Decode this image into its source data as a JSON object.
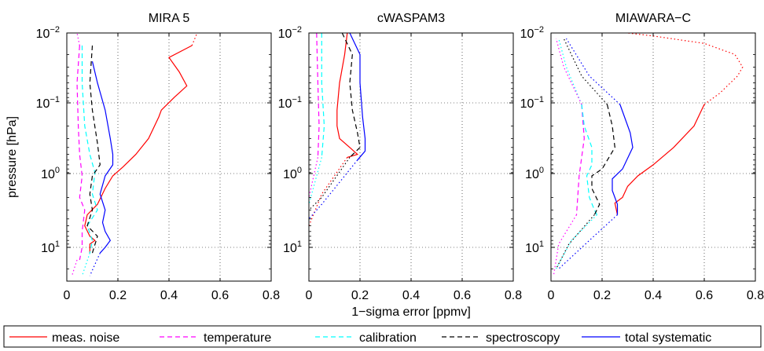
{
  "chart_data": {
    "type": "line",
    "xlabel": "1−sigma error [ppmv]",
    "ylabel": "pressure [hPa]",
    "y_scale": "log",
    "y_reversed": true,
    "x_ticks": [
      "0",
      "0.2",
      "0.4",
      "0.6",
      "0.8"
    ],
    "y_tick_mantissa": "10",
    "y_tick_exponents": [
      "−2",
      "−1",
      "0",
      "1"
    ],
    "xlim": [
      0,
      0.8
    ],
    "ylim": [
      0.01,
      30
    ],
    "grid": true,
    "legend_placement": "bottom",
    "legend": [
      {
        "label": "meas. noise",
        "color": "#ff0000",
        "dash": "solid"
      },
      {
        "label": "temperature",
        "color": "#ff00ff",
        "dash": "dashed"
      },
      {
        "label": "calibration",
        "color": "#00ffff",
        "dash": "dashed"
      },
      {
        "label": "spectroscopy",
        "color": "#000000",
        "dash": "dashed"
      },
      {
        "label": "total systematic",
        "color": "#0000ff",
        "dash": "solid"
      }
    ],
    "panels": [
      {
        "title": "MIRA 5",
        "series": [
          {
            "color": "#ff0000",
            "dash": "solid",
            "points": [
              [
                0.49,
                0.015
              ],
              [
                0.4,
                0.022
              ],
              [
                0.44,
                0.035
              ],
              [
                0.47,
                0.055
              ],
              [
                0.42,
                0.08
              ],
              [
                0.37,
                0.12
              ],
              [
                0.36,
                0.15
              ],
              [
                0.32,
                0.3
              ],
              [
                0.27,
                0.5
              ],
              [
                0.22,
                0.75
              ],
              [
                0.18,
                1.0
              ],
              [
                0.15,
                1.5
              ],
              [
                0.12,
                2.5
              ],
              [
                0.08,
                3.5
              ],
              [
                0.07,
                5.0
              ],
              [
                0.09,
                7.0
              ],
              [
                0.11,
                8.0
              ],
              [
                0.09,
                9.0
              ],
              [
                0.09,
                12.0
              ]
            ]
          },
          {
            "color": "#ff00ff",
            "dash": "dashed",
            "points": [
              [
                0.05,
                0.015
              ],
              [
                0.04,
                0.05
              ],
              [
                0.045,
                0.2
              ],
              [
                0.05,
                0.5
              ],
              [
                0.06,
                1.0
              ],
              [
                0.05,
                2.0
              ],
              [
                0.07,
                3.0
              ],
              [
                0.06,
                6.0
              ],
              [
                0.06,
                10.0
              ],
              [
                0.05,
                15.0
              ]
            ]
          },
          {
            "color": "#00ffff",
            "dash": "dashed",
            "points": [
              [
                0.06,
                0.015
              ],
              [
                0.06,
                0.05
              ],
              [
                0.07,
                0.2
              ],
              [
                0.09,
                0.5
              ],
              [
                0.11,
                0.9
              ],
              [
                0.1,
                1.8
              ],
              [
                0.12,
                3.0
              ],
              [
                0.08,
                5.0
              ],
              [
                0.1,
                8.0
              ],
              [
                0.09,
                12.0
              ]
            ]
          },
          {
            "color": "#000000",
            "dash": "dashed",
            "points": [
              [
                0.1,
                0.015
              ],
              [
                0.09,
                0.05
              ],
              [
                0.1,
                0.12
              ],
              [
                0.12,
                0.35
              ],
              [
                0.13,
                0.7
              ],
              [
                0.1,
                1.0
              ],
              [
                0.09,
                1.8
              ],
              [
                0.1,
                3.0
              ],
              [
                0.08,
                5.0
              ],
              [
                0.12,
                7.0
              ],
              [
                0.1,
                12.0
              ]
            ]
          },
          {
            "color": "#0000ff",
            "dash": "solid",
            "points": [
              [
                0.1,
                0.025
              ],
              [
                0.12,
                0.05
              ],
              [
                0.15,
                0.12
              ],
              [
                0.17,
                0.3
              ],
              [
                0.18,
                0.5
              ],
              [
                0.18,
                0.7
              ],
              [
                0.15,
                1.0
              ],
              [
                0.13,
                1.8
              ],
              [
                0.15,
                3.0
              ],
              [
                0.14,
                4.5
              ],
              [
                0.15,
                6.0
              ],
              [
                0.17,
                8.0
              ],
              [
                0.15,
                10.0
              ],
              [
                0.13,
                12.0
              ]
            ]
          },
          {
            "color": "#ff00ff",
            "dash": "dotted",
            "points": [
              [
                0.04,
                15.0
              ],
              [
                0.02,
                25.0
              ]
            ]
          },
          {
            "color": "#00ffff",
            "dash": "dotted",
            "points": [
              [
                0.09,
                12.0
              ],
              [
                0.06,
                25.0
              ]
            ]
          },
          {
            "color": "#0000ff",
            "dash": "dotted",
            "points": [
              [
                0.13,
                12.0
              ],
              [
                0.09,
                25.0
              ]
            ]
          },
          {
            "color": "#ff00ff",
            "dash": "dotted",
            "points": [
              [
                0.05,
                0.015
              ],
              [
                0.04,
                0.01
              ]
            ]
          },
          {
            "color": "#ff0000",
            "dash": "dotted",
            "points": [
              [
                0.49,
                0.015
              ],
              [
                0.51,
                0.01
              ]
            ]
          }
        ]
      },
      {
        "title": "cWASPAM3",
        "series": [
          {
            "color": "#ff0000",
            "dash": "solid",
            "points": [
              [
                0.15,
                0.01
              ],
              [
                0.14,
                0.02
              ],
              [
                0.12,
                0.05
              ],
              [
                0.11,
                0.12
              ],
              [
                0.11,
                0.2
              ],
              [
                0.12,
                0.3
              ],
              [
                0.16,
                0.4
              ],
              [
                0.19,
                0.5
              ],
              [
                0.15,
                0.55
              ]
            ]
          },
          {
            "color": "#ff00ff",
            "dash": "dashed",
            "points": [
              [
                0.03,
                0.01
              ],
              [
                0.035,
                0.05
              ],
              [
                0.04,
                0.2
              ],
              [
                0.035,
                0.55
              ]
            ]
          },
          {
            "color": "#00ffff",
            "dash": "dashed",
            "points": [
              [
                0.05,
                0.01
              ],
              [
                0.05,
                0.05
              ],
              [
                0.06,
                0.2
              ],
              [
                0.05,
                0.55
              ]
            ]
          },
          {
            "color": "#000000",
            "dash": "dashed",
            "points": [
              [
                0.13,
                0.01
              ],
              [
                0.17,
                0.02
              ],
              [
                0.16,
                0.05
              ],
              [
                0.17,
                0.12
              ],
              [
                0.19,
                0.25
              ],
              [
                0.2,
                0.4
              ],
              [
                0.16,
                0.55
              ]
            ]
          },
          {
            "color": "#0000ff",
            "dash": "solid",
            "points": [
              [
                0.16,
                0.01
              ],
              [
                0.2,
                0.02
              ],
              [
                0.2,
                0.05
              ],
              [
                0.21,
                0.15
              ],
              [
                0.22,
                0.3
              ],
              [
                0.22,
                0.45
              ],
              [
                0.19,
                0.6
              ]
            ]
          },
          {
            "color": "#ff0000",
            "dash": "dotted",
            "points": [
              [
                0.15,
                0.55
              ],
              [
                0.05,
                1.8
              ],
              [
                0.0,
                5.0
              ]
            ]
          },
          {
            "color": "#0000ff",
            "dash": "dotted",
            "points": [
              [
                0.19,
                0.6
              ],
              [
                0.05,
                2.5
              ],
              [
                0.0,
                4.0
              ]
            ]
          },
          {
            "color": "#00ffff",
            "dash": "dotted",
            "points": [
              [
                0.05,
                0.55
              ],
              [
                0.0,
                2.5
              ]
            ]
          },
          {
            "color": "#ff00ff",
            "dash": "dotted",
            "points": [
              [
                0.035,
                0.55
              ],
              [
                0.0,
                2.0
              ]
            ]
          },
          {
            "color": "#000000",
            "dash": "dotted",
            "points": [
              [
                0.16,
                0.55
              ],
              [
                0.05,
                2.0
              ],
              [
                0.0,
                3.0
              ]
            ]
          }
        ]
      },
      {
        "title": "MIAWARA−C",
        "series": [
          {
            "color": "#ff0000",
            "dash": "solid",
            "points": [
              [
                0.6,
                0.1
              ],
              [
                0.56,
                0.2
              ],
              [
                0.48,
                0.4
              ],
              [
                0.4,
                0.7
              ],
              [
                0.34,
                1.0
              ],
              [
                0.3,
                1.4
              ],
              [
                0.28,
                2.0
              ],
              [
                0.25,
                2.4
              ],
              [
                0.26,
                3.5
              ]
            ]
          },
          {
            "color": "#ff00ff",
            "dash": "dashed",
            "points": [
              [
                0.12,
                0.1
              ],
              [
                0.13,
                0.3
              ],
              [
                0.11,
                1.0
              ],
              [
                0.1,
                3.5
              ]
            ]
          },
          {
            "color": "#00ffff",
            "dash": "dashed",
            "points": [
              [
                0.12,
                0.1
              ],
              [
                0.13,
                0.2
              ],
              [
                0.16,
                0.4
              ],
              [
                0.16,
                0.7
              ],
              [
                0.14,
                1.0
              ],
              [
                0.15,
                2.0
              ],
              [
                0.17,
                3.0
              ],
              [
                0.18,
                3.5
              ]
            ]
          },
          {
            "color": "#000000",
            "dash": "dashed",
            "points": [
              [
                0.22,
                0.1
              ],
              [
                0.24,
                0.2
              ],
              [
                0.25,
                0.4
              ],
              [
                0.2,
                0.8
              ],
              [
                0.16,
                1.0
              ],
              [
                0.16,
                1.5
              ],
              [
                0.19,
                2.5
              ],
              [
                0.17,
                3.5
              ]
            ]
          },
          {
            "color": "#0000ff",
            "dash": "solid",
            "points": [
              [
                0.27,
                0.1
              ],
              [
                0.31,
                0.25
              ],
              [
                0.32,
                0.4
              ],
              [
                0.28,
                0.8
              ],
              [
                0.24,
                1.1
              ],
              [
                0.24,
                1.6
              ],
              [
                0.26,
                2.5
              ],
              [
                0.26,
                3.5
              ]
            ]
          },
          {
            "color": "#ff0000",
            "dash": "dotted",
            "points": [
              [
                0.6,
                0.1
              ],
              [
                0.66,
                0.07
              ],
              [
                0.73,
                0.04
              ],
              [
                0.75,
                0.03
              ],
              [
                0.72,
                0.02
              ],
              [
                0.6,
                0.014
              ],
              [
                0.4,
                0.011
              ],
              [
                0.3,
                0.01
              ]
            ]
          },
          {
            "color": "#000000",
            "dash": "dotted",
            "points": [
              [
                0.22,
                0.1
              ],
              [
                0.12,
                0.04
              ],
              [
                0.05,
                0.012
              ]
            ]
          },
          {
            "color": "#0000ff",
            "dash": "dotted",
            "points": [
              [
                0.27,
                0.1
              ],
              [
                0.15,
                0.04
              ],
              [
                0.06,
                0.012
              ]
            ]
          },
          {
            "color": "#00ffff",
            "dash": "dotted",
            "points": [
              [
                0.12,
                0.1
              ],
              [
                0.06,
                0.03
              ],
              [
                0.03,
                0.012
              ]
            ]
          },
          {
            "color": "#ff00ff",
            "dash": "dotted",
            "points": [
              [
                0.12,
                0.1
              ],
              [
                0.05,
                0.03
              ],
              [
                0.02,
                0.012
              ]
            ]
          },
          {
            "color": "#0000ff",
            "dash": "dotted",
            "points": [
              [
                0.26,
                3.5
              ],
              [
                0.15,
                8.0
              ],
              [
                0.03,
                20.0
              ]
            ]
          },
          {
            "color": "#ff00ff",
            "dash": "dotted",
            "points": [
              [
                0.1,
                3.5
              ],
              [
                0.03,
                9.0
              ],
              [
                0.01,
                25.0
              ]
            ]
          },
          {
            "color": "#00ffff",
            "dash": "dotted",
            "points": [
              [
                0.18,
                3.5
              ],
              [
                0.08,
                8.0
              ],
              [
                0.02,
                20.0
              ]
            ]
          },
          {
            "color": "#000000",
            "dash": "dotted",
            "points": [
              [
                0.17,
                3.5
              ],
              [
                0.07,
                9.0
              ],
              [
                0.02,
                20.0
              ]
            ]
          }
        ]
      }
    ]
  }
}
